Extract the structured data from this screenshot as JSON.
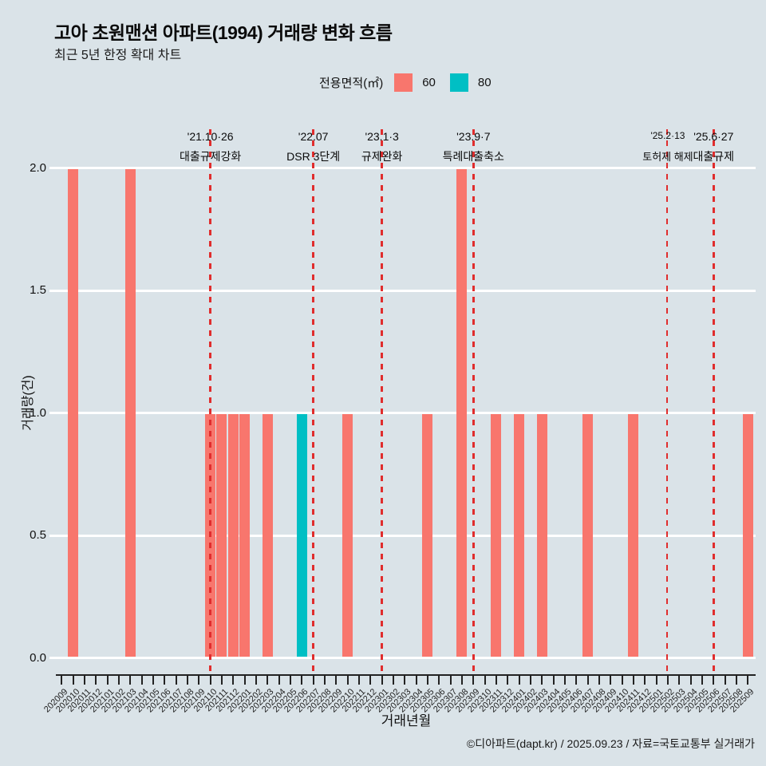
{
  "title": "고아 초원맨션 아파트(1994) 거래량 변화 흐름",
  "subtitle": "최근 5년 한정 확대 차트",
  "legend": {
    "title": "전용면적(㎡)"
  },
  "footer": "©디아파트(dapt.kr) / 2025.09.23 / 자료=국토교통부 실거래가",
  "chart_data": {
    "type": "bar",
    "xlabel": "거래년월",
    "ylabel": "거래량(건)",
    "ylim": [
      0,
      2
    ],
    "ytick_labels": [
      "0.0",
      "0.5",
      "1.0",
      "1.5",
      "2.0"
    ],
    "grid": true,
    "legend_position": "top",
    "categories": [
      "202009",
      "202010",
      "202011",
      "202012",
      "202101",
      "202102",
      "202103",
      "202104",
      "202105",
      "202106",
      "202107",
      "202108",
      "202109",
      "202110",
      "202111",
      "202112",
      "202201",
      "202202",
      "202203",
      "202204",
      "202205",
      "202206",
      "202207",
      "202208",
      "202209",
      "202210",
      "202211",
      "202212",
      "202301",
      "202302",
      "202303",
      "202304",
      "202305",
      "202306",
      "202307",
      "202308",
      "202309",
      "202310",
      "202311",
      "202312",
      "202401",
      "202402",
      "202403",
      "202404",
      "202405",
      "202406",
      "202407",
      "202408",
      "202409",
      "202410",
      "202411",
      "202412",
      "202501",
      "202502",
      "202503",
      "202504",
      "202505",
      "202506",
      "202507",
      "202508",
      "202509"
    ],
    "series": [
      {
        "name": "60",
        "color": "#F8766D",
        "points": {
          "202010": 2,
          "202103": 2,
          "202110": 1,
          "202111": 1,
          "202112": 1,
          "202201": 1,
          "202203": 1,
          "202210": 1,
          "202305": 1,
          "202308": 2,
          "202311": 1,
          "202401": 1,
          "202403": 1,
          "202407": 1,
          "202411": 1,
          "202509": 1
        }
      },
      {
        "name": "80",
        "color": "#00BFC4",
        "points": {
          "202206": 1
        }
      }
    ],
    "events": [
      {
        "date": "'21.10·26",
        "label": "대출규제강화",
        "month": "202110"
      },
      {
        "date": "'22.07",
        "label": "DSR 3단계",
        "month": "202207"
      },
      {
        "date": "'23.1·3",
        "label": "규제완화",
        "month": "202301"
      },
      {
        "date": "'23.9·7",
        "label": "특례대출축소",
        "month": "202309"
      },
      {
        "date": "'25.2·13",
        "label": "토허제 해제",
        "month": "202502",
        "small": true
      },
      {
        "date": "'25.6·27",
        "label": "대출규제",
        "month": "202506"
      }
    ],
    "event_line_color": "#E02D2D"
  }
}
